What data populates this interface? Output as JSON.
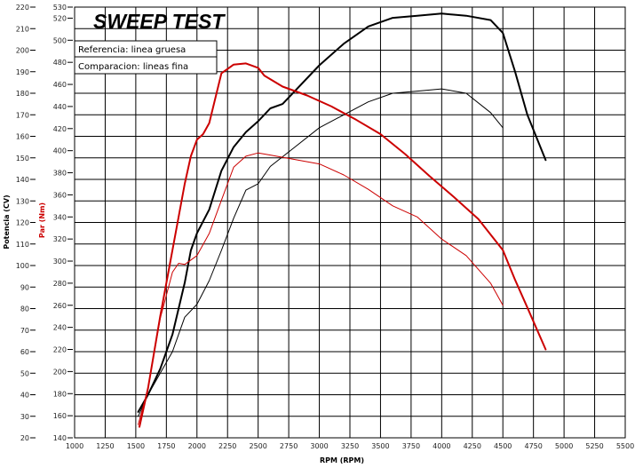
{
  "chart_data": {
    "type": "line",
    "title": "SWEEP TEST",
    "xlabel": "RPM (RPM)",
    "ylabel_left": "Potencia (CV)",
    "ylabel_right": "Par (Nm)",
    "legend": [
      "Referencia: linea gruesa",
      "Comparacion: lineas fina"
    ],
    "legend_placement": "top-left",
    "grid": true,
    "xlim": [
      1000,
      5500
    ],
    "x_ticks": [
      1000,
      1250,
      1500,
      1750,
      2000,
      2250,
      2500,
      2750,
      3000,
      3250,
      3500,
      3750,
      4000,
      4250,
      4500,
      4750,
      5000,
      5250,
      5500
    ],
    "ylim_left": [
      20,
      220
    ],
    "y_ticks_left": [
      20,
      30,
      40,
      50,
      60,
      70,
      80,
      90,
      100,
      110,
      120,
      130,
      140,
      150,
      160,
      170,
      180,
      190,
      200,
      210,
      220
    ],
    "ylim_right": [
      140,
      530
    ],
    "y_ticks_right": [
      140,
      160,
      180,
      200,
      220,
      240,
      260,
      280,
      300,
      320,
      340,
      360,
      380,
      400,
      420,
      440,
      460,
      480,
      500,
      520,
      530
    ],
    "series": [
      {
        "axis": "left",
        "color": "#000000",
        "weight": "thick",
        "x": [
          1520,
          1600,
          1700,
          1800,
          1900,
          1950,
          2000,
          2100,
          2200,
          2300,
          2400,
          2500,
          2600,
          2700,
          2800,
          3000,
          3200,
          3400,
          3600,
          3800,
          4000,
          4200,
          4400,
          4500,
          4600,
          4700,
          4850
        ],
        "y": [
          32,
          40,
          52,
          68,
          92,
          107,
          115,
          126,
          144,
          155,
          162,
          167,
          173,
          175,
          181,
          193,
          203,
          211,
          215,
          216,
          217,
          216,
          214,
          208,
          190,
          170,
          149
        ]
      },
      {
        "axis": "left",
        "color": "#000000",
        "weight": "thin",
        "x": [
          1520,
          1600,
          1700,
          1800,
          1900,
          2000,
          2100,
          2200,
          2300,
          2400,
          2500,
          2600,
          2800,
          3000,
          3200,
          3400,
          3600,
          3800,
          4000,
          4200,
          4400,
          4500
        ],
        "y": [
          30,
          40,
          50,
          60,
          76,
          82,
          93,
          107,
          122,
          135,
          138,
          146,
          155,
          164,
          170,
          176,
          180,
          181,
          182,
          180,
          171,
          164
        ]
      },
      {
        "axis": "right",
        "color": "#cc0000",
        "weight": "thick",
        "x": [
          1530,
          1600,
          1700,
          1800,
          1900,
          1950,
          2000,
          2050,
          2100,
          2200,
          2300,
          2400,
          2500,
          2550,
          2700,
          2900,
          3100,
          3300,
          3500,
          3700,
          3900,
          4100,
          4300,
          4500,
          4600,
          4700,
          4850
        ],
        "y": [
          150,
          185,
          250,
          310,
          370,
          395,
          410,
          415,
          425,
          470,
          478,
          479,
          475,
          468,
          458,
          450,
          440,
          428,
          415,
          397,
          377,
          358,
          338,
          310,
          283,
          258,
          220
        ]
      },
      {
        "axis": "right",
        "color": "#cc0000",
        "weight": "thin",
        "x": [
          1520,
          1600,
          1700,
          1800,
          1850,
          1900,
          2000,
          2100,
          2200,
          2300,
          2400,
          2500,
          2600,
          2800,
          3000,
          3200,
          3400,
          3600,
          3800,
          4000,
          4200,
          4400,
          4500
        ],
        "y": [
          152,
          185,
          248,
          290,
          298,
          297,
          305,
          325,
          355,
          385,
          395,
          398,
          396,
          392,
          388,
          378,
          365,
          350,
          340,
          320,
          305,
          280,
          260
        ]
      }
    ]
  }
}
